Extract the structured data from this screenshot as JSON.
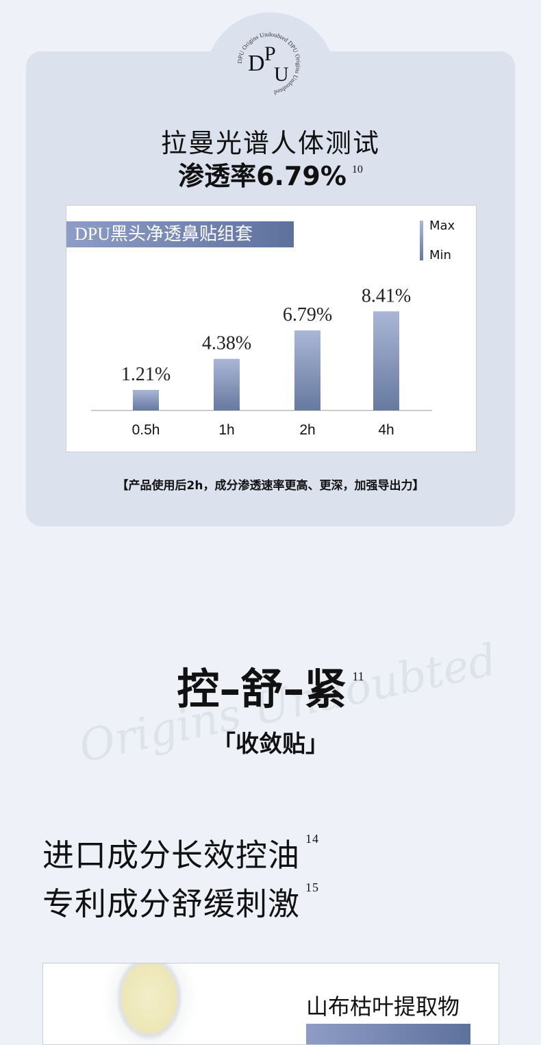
{
  "logo": {
    "text": "DPU",
    "ring_text": "DPU Origins Undoubted DPU Origins Undoubted"
  },
  "section1": {
    "title": "拉曼光谱人体测试",
    "subtitle": "渗透率6.79%",
    "subtitle_ref": "10",
    "caption": "【产品使用后2h，成分渗透速率更高、更深，加强导出力】"
  },
  "chart_data": {
    "type": "bar",
    "title": "DPU黑头净透鼻贴组套",
    "categories": [
      "0.5h",
      "1h",
      "2h",
      "4h"
    ],
    "values": [
      1.21,
      4.38,
      6.79,
      8.41
    ],
    "data_labels": [
      "1.21%",
      "4.38%",
      "6.79%",
      "8.41%"
    ],
    "legend": {
      "max": "Max",
      "min": "Min",
      "placement": "top-right"
    },
    "grid": false,
    "colors": {
      "bar_top": "#aab6d6",
      "bar_bottom": "#66799f"
    }
  },
  "section2": {
    "title": "控–舒–紧",
    "title_ref": "11",
    "subtitle": "「收敛贴」",
    "watermark": "Origins Undoubted",
    "lines": [
      {
        "text": "进口成分长效控油",
        "ref": "14"
      },
      {
        "text": "专利成分舒缓刺激",
        "ref": "15"
      }
    ],
    "ingredient": "山布枯叶提取物"
  },
  "colors": {
    "background": "#eef1f7",
    "card": "#dce1ee",
    "accent": "#6d7fa8"
  }
}
